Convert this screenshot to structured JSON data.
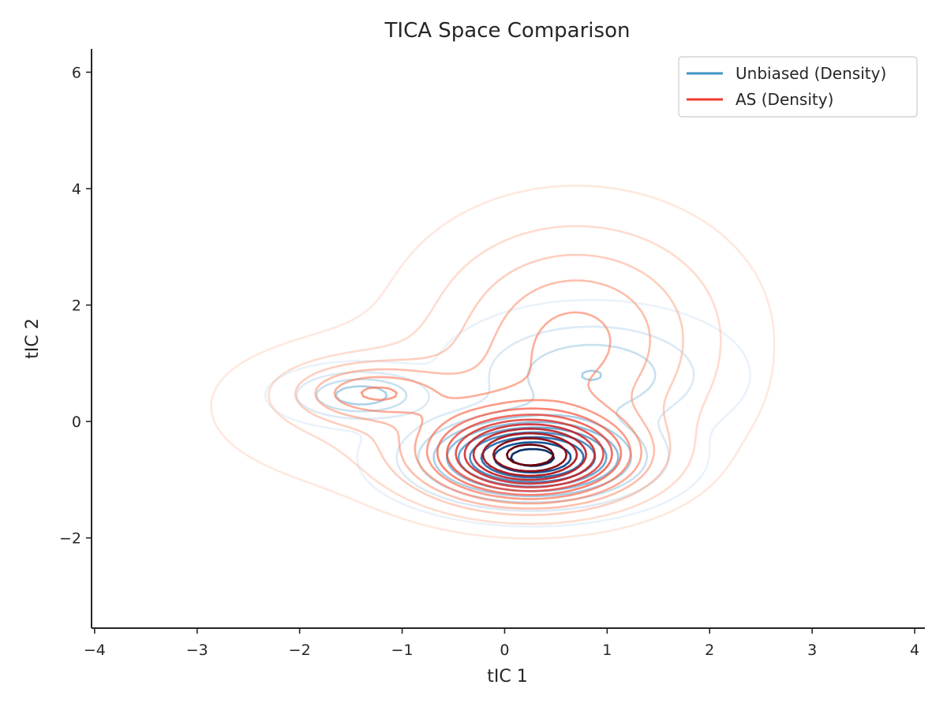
{
  "chart_data": {
    "type": "contour",
    "title": "TICA Space Comparison",
    "xlabel": "tIC 1",
    "ylabel": "tIC 2",
    "xlim": [
      -4.03,
      4.1
    ],
    "ylim": [
      -3.55,
      6.4
    ],
    "xticks": [
      -4,
      -3,
      -2,
      -1,
      0,
      1,
      2,
      3,
      4
    ],
    "xtick_labels": [
      "−4",
      "−3",
      "−2",
      "−1",
      "0",
      "1",
      "2",
      "3",
      "4"
    ],
    "yticks": [
      -2,
      0,
      2,
      4,
      6
    ],
    "ytick_labels": [
      "−2",
      "0",
      "2",
      "4",
      "6"
    ],
    "legend": {
      "location": "top-right"
    },
    "grid": false,
    "series": [
      {
        "name": "Unbiased (Density)",
        "color": "#4292c6",
        "colormap": "Blues",
        "modes": [
          {
            "mean": [
              0.27,
              -0.62
            ],
            "std": [
              0.55,
              0.38
            ],
            "weight": 1.0
          },
          {
            "mean": [
              -1.4,
              0.45
            ],
            "std": [
              0.35,
              0.22
            ],
            "weight": 0.28
          },
          {
            "mean": [
              0.85,
              0.8
            ],
            "std": [
              0.6,
              0.5
            ],
            "weight": 0.22
          }
        ],
        "levels": 10
      },
      {
        "name": "AS (Density)",
        "color": "#ef3b2c",
        "colormap": "Reds",
        "modes": [
          {
            "mean": [
              0.25,
              -0.6
            ],
            "std": [
              0.58,
              0.45
            ],
            "weight": 1.0
          },
          {
            "mean": [
              -1.3,
              0.5
            ],
            "std": [
              0.45,
              0.3
            ],
            "weight": 0.22
          },
          {
            "mean": [
              0.7,
              1.5
            ],
            "std": [
              0.75,
              1.0
            ],
            "weight": 0.22
          },
          {
            "mean": [
              -0.4,
              0.2
            ],
            "std": [
              1.1,
              0.7
            ],
            "weight": 0.1
          }
        ],
        "levels": 14
      }
    ]
  }
}
